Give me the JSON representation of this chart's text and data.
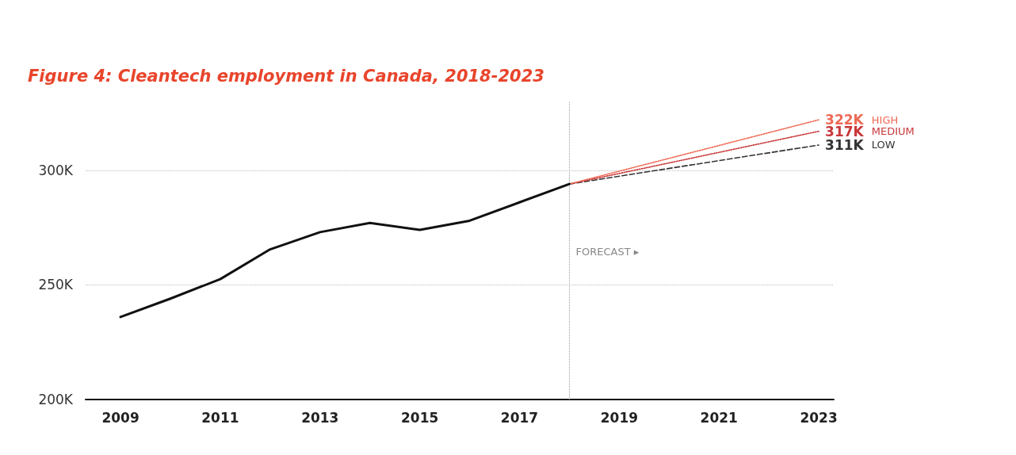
{
  "chart_data": {
    "type": "line",
    "title": "Figure 4: Cleantech employment in Canada, 2018-2023",
    "xlim": [
      2008.3,
      2023.3
    ],
    "xticks": [
      2009,
      2011,
      2013,
      2015,
      2017,
      2019,
      2021,
      2023
    ],
    "ylim": [
      200,
      330
    ],
    "yticks": [
      {
        "value": 200,
        "label": "200K"
      },
      {
        "value": 250,
        "label": "250K"
      },
      {
        "value": 300,
        "label": "300K"
      }
    ],
    "grid": "y",
    "legend": false,
    "marker": "none",
    "ref_lines": [
      {
        "axis": "x",
        "value": 2018,
        "label": "FORECAST ▸",
        "color": "#999999",
        "line_style": "dotted"
      }
    ],
    "series": [
      {
        "color": "#111111",
        "line_style": "solid",
        "x": [
          2009,
          2010,
          2011,
          2012,
          2013,
          2014,
          2015,
          2016,
          2017,
          2018
        ],
        "values": [
          236,
          244,
          252.5,
          265.5,
          273,
          277,
          274,
          278,
          286,
          294
        ]
      },
      {
        "name": "HIGH",
        "color": "#ee6a55",
        "line_style": "dotted",
        "x": [
          2018,
          2023
        ],
        "values": [
          294,
          322
        ],
        "value_labels": [
          null,
          "322K"
        ]
      },
      {
        "name": "MEDIUM",
        "color": "#c8383a",
        "line_style": "dotted",
        "x": [
          2018,
          2023
        ],
        "values": [
          294,
          317
        ],
        "value_labels": [
          null,
          "317K"
        ]
      },
      {
        "name": "LOW",
        "color": "#333333",
        "line_style": "dashed",
        "x": [
          2018,
          2023
        ],
        "values": [
          294,
          311
        ],
        "value_labels": [
          null,
          "311K"
        ]
      }
    ]
  }
}
